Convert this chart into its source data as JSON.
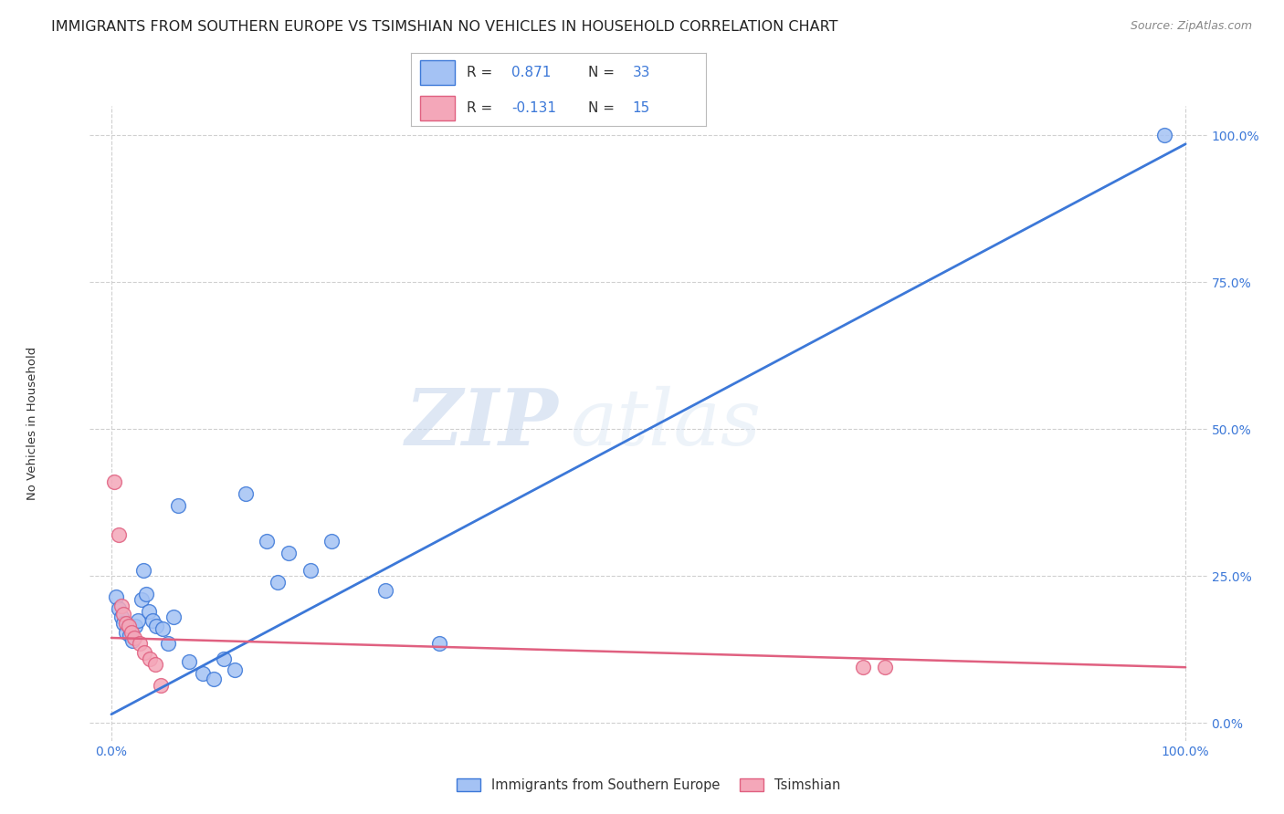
{
  "title": "IMMIGRANTS FROM SOUTHERN EUROPE VS TSIMSHIAN NO VEHICLES IN HOUSEHOLD CORRELATION CHART",
  "source": "Source: ZipAtlas.com",
  "ylabel": "No Vehicles in Household",
  "ytick_labels": [
    "0.0%",
    "25.0%",
    "50.0%",
    "75.0%",
    "100.0%"
  ],
  "ytick_values": [
    0,
    25,
    50,
    75,
    100
  ],
  "xtick_labels": [
    "0.0%",
    "100.0%"
  ],
  "xtick_values": [
    0,
    100
  ],
  "xlim": [
    -2,
    102
  ],
  "ylim": [
    -3,
    105
  ],
  "watermark_zip": "ZIP",
  "watermark_atlas": "atlas",
  "blue_color": "#a4c2f4",
  "pink_color": "#f4a7b9",
  "line_blue": "#3c78d8",
  "line_pink": "#e06080",
  "blue_scatter": [
    [
      0.4,
      21.5
    ],
    [
      0.7,
      19.5
    ],
    [
      0.9,
      18.0
    ],
    [
      1.1,
      17.0
    ],
    [
      1.4,
      15.5
    ],
    [
      1.7,
      15.0
    ],
    [
      2.0,
      14.0
    ],
    [
      2.2,
      16.5
    ],
    [
      2.5,
      17.5
    ],
    [
      2.8,
      21.0
    ],
    [
      3.0,
      26.0
    ],
    [
      3.2,
      22.0
    ],
    [
      3.5,
      19.0
    ],
    [
      3.8,
      17.5
    ],
    [
      4.2,
      16.5
    ],
    [
      4.8,
      16.0
    ],
    [
      5.3,
      13.5
    ],
    [
      5.8,
      18.0
    ],
    [
      6.2,
      37.0
    ],
    [
      7.2,
      10.5
    ],
    [
      8.5,
      8.5
    ],
    [
      9.5,
      7.5
    ],
    [
      10.5,
      11.0
    ],
    [
      11.5,
      9.0
    ],
    [
      12.5,
      39.0
    ],
    [
      14.5,
      31.0
    ],
    [
      15.5,
      24.0
    ],
    [
      16.5,
      29.0
    ],
    [
      18.5,
      26.0
    ],
    [
      20.5,
      31.0
    ],
    [
      25.5,
      22.5
    ],
    [
      30.5,
      13.5
    ],
    [
      98.0,
      100.0
    ]
  ],
  "pink_scatter": [
    [
      0.3,
      41.0
    ],
    [
      0.7,
      32.0
    ],
    [
      0.9,
      20.0
    ],
    [
      1.1,
      18.5
    ],
    [
      1.4,
      17.0
    ],
    [
      1.6,
      16.5
    ],
    [
      1.9,
      15.5
    ],
    [
      2.1,
      14.5
    ],
    [
      2.6,
      13.5
    ],
    [
      3.1,
      12.0
    ],
    [
      3.6,
      11.0
    ],
    [
      4.1,
      10.0
    ],
    [
      4.6,
      6.5
    ],
    [
      70.0,
      9.5
    ],
    [
      72.0,
      9.5
    ]
  ],
  "blue_line_x": [
    0,
    100
  ],
  "blue_line_y": [
    1.5,
    98.5
  ],
  "pink_line_x": [
    0,
    100
  ],
  "pink_line_y": [
    14.5,
    9.5
  ],
  "grid_color": "#d0d0d0",
  "background_color": "#ffffff",
  "title_fontsize": 11.5,
  "source_fontsize": 9,
  "axis_tick_fontsize": 10,
  "ylabel_fontsize": 9.5
}
